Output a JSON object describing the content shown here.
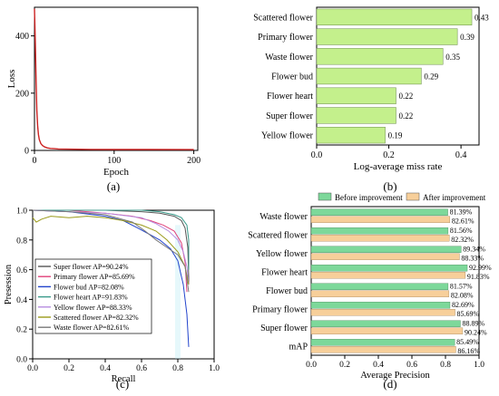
{
  "chart_data": [
    {
      "panel": "(a)",
      "type": "line",
      "xlabel": "Epoch",
      "ylabel": "Loss",
      "xlim": [
        0,
        205
      ],
      "ylim": [
        0,
        500
      ],
      "xticks": [
        "0",
        "100",
        "200"
      ],
      "yticks": [
        "0",
        "200",
        "400"
      ],
      "color": "#cc2222",
      "series": [
        {
          "x": [
            0,
            1,
            2,
            3,
            4,
            5,
            6,
            8,
            10,
            13,
            16,
            20,
            25,
            30,
            40,
            50,
            70,
            100,
            140,
            200
          ],
          "y": [
            495,
            380,
            240,
            140,
            85,
            55,
            38,
            24,
            17,
            12,
            9,
            7,
            6,
            5,
            4.5,
            4,
            3.6,
            3.3,
            3.1,
            3
          ]
        }
      ]
    },
    {
      "panel": "(b)",
      "type": "bar",
      "orientation": "horizontal",
      "xlabel": "Log-average miss rate",
      "xlim": [
        0,
        0.45
      ],
      "xticks": [
        "0.0",
        "0.2",
        "0.4"
      ],
      "color": "#c4f08c",
      "categories": [
        "Scattered flower",
        "Primary flower",
        "Waste flower",
        "Flower bud",
        "Flower heart",
        "Super flower",
        "Yellow flower"
      ],
      "values": [
        0.43,
        0.39,
        0.35,
        0.29,
        0.22,
        0.22,
        0.19
      ],
      "value_labels": [
        "0.43",
        "0.39",
        "0.35",
        "0.29",
        "0.22",
        "0.22",
        "0.19"
      ]
    },
    {
      "panel": "(c)",
      "type": "line",
      "xlabel": "Recall",
      "ylabel": "Presession",
      "xlim": [
        0,
        1
      ],
      "ylim": [
        0,
        1
      ],
      "xticks": [
        "0.0",
        "0.2",
        "0.4",
        "0.6",
        "0.8",
        "1.0"
      ],
      "yticks": [
        "0.0",
        "0.2",
        "0.4",
        "0.6",
        "0.8",
        "1.0"
      ],
      "legend": "bottom-left",
      "series": [
        {
          "name": "Super flower AP=90.24%",
          "color": "#555555",
          "x": [
            0,
            0.2,
            0.4,
            0.6,
            0.7,
            0.78,
            0.82,
            0.84,
            0.855,
            0.86,
            0.86
          ],
          "y": [
            1.0,
            1.0,
            1.0,
            0.99,
            0.98,
            0.96,
            0.93,
            0.88,
            0.75,
            0.55,
            0.5
          ]
        },
        {
          "name": "Primary flower AP=85.69%",
          "color": "#e0427a",
          "x": [
            0,
            0.2,
            0.4,
            0.55,
            0.65,
            0.72,
            0.78,
            0.82,
            0.84,
            0.85
          ],
          "y": [
            1.0,
            1.0,
            0.98,
            0.96,
            0.93,
            0.9,
            0.86,
            0.78,
            0.65,
            0.45
          ]
        },
        {
          "name": "Flower bud AP=82.08%",
          "color": "#2244cc",
          "x": [
            0,
            0.2,
            0.4,
            0.5,
            0.58,
            0.64,
            0.7,
            0.76,
            0.8,
            0.83,
            0.85,
            0.86
          ],
          "y": [
            1.0,
            0.99,
            0.96,
            0.93,
            0.88,
            0.84,
            0.8,
            0.74,
            0.66,
            0.5,
            0.3,
            0.08
          ]
        },
        {
          "name": "Flower heart AP=91.83%",
          "color": "#3a9a8a",
          "x": [
            0,
            0.2,
            0.4,
            0.6,
            0.7,
            0.78,
            0.82,
            0.85,
            0.86,
            0.86
          ],
          "y": [
            1.0,
            1.0,
            1.0,
            1.0,
            0.99,
            0.97,
            0.95,
            0.9,
            0.8,
            0.6
          ]
        },
        {
          "name": "Yellow flower AP=88.33%",
          "color": "#b78ce0",
          "x": [
            0,
            0.2,
            0.4,
            0.6,
            0.68,
            0.75,
            0.8,
            0.83,
            0.85,
            0.86
          ],
          "y": [
            1.0,
            0.99,
            0.98,
            0.95,
            0.91,
            0.86,
            0.8,
            0.72,
            0.62,
            0.5
          ]
        },
        {
          "name": "Scattered flower AP=82.32%",
          "color": "#9a9a1a",
          "x": [
            0,
            0.02,
            0.05,
            0.1,
            0.2,
            0.3,
            0.4,
            0.5,
            0.6,
            0.68,
            0.74,
            0.8,
            0.84,
            0.86
          ],
          "y": [
            0.95,
            0.92,
            0.94,
            0.96,
            0.95,
            0.96,
            0.95,
            0.93,
            0.9,
            0.86,
            0.8,
            0.72,
            0.62,
            0.5
          ]
        },
        {
          "name": "Waste flower AP=82.61%",
          "color": "#7a7a7a",
          "x": [
            0,
            0.2,
            0.4,
            0.55,
            0.62,
            0.68,
            0.74,
            0.8,
            0.84,
            0.86
          ],
          "y": [
            1.0,
            0.99,
            0.97,
            0.92,
            0.86,
            0.8,
            0.75,
            0.7,
            0.62,
            0.45
          ]
        }
      ]
    },
    {
      "panel": "(d)",
      "type": "bar",
      "orientation": "horizontal",
      "xlabel": "Average Precision",
      "xlim": [
        0,
        1.0
      ],
      "xticks": [
        "0.0",
        "0.2",
        "0.4",
        "0.6",
        "0.8",
        "1.0"
      ],
      "legend": "top",
      "categories": [
        "Waste flower",
        "Scattered flower",
        "Yellow flower",
        "Flower heart",
        "Flower bud",
        "Primary flower",
        "Super flower",
        "mAP"
      ],
      "series": [
        {
          "name": "Before improvement",
          "color": "#7dd89a",
          "values": [
            0.8139,
            0.8156,
            0.8934,
            0.9299,
            0.8157,
            0.8269,
            0.8889,
            0.8549
          ],
          "labels": [
            "81.39%",
            "81.56%",
            "89.34%",
            "92.99%",
            "81.57%",
            "82.69%",
            "88.89%",
            "85.49%"
          ]
        },
        {
          "name": "After improvement",
          "color": "#f7cf9a",
          "values": [
            0.8261,
            0.8232,
            0.8833,
            0.9183,
            0.8208,
            0.8569,
            0.9024,
            0.8616
          ],
          "labels": [
            "82.61%",
            "82.32%",
            "88.33%",
            "91.83%",
            "82.08%",
            "85.69%",
            "90.24%",
            "86.16%"
          ]
        }
      ]
    }
  ],
  "captions": {
    "a": "(a)",
    "b": "(b)",
    "c": "(c)",
    "d": "(d)"
  }
}
